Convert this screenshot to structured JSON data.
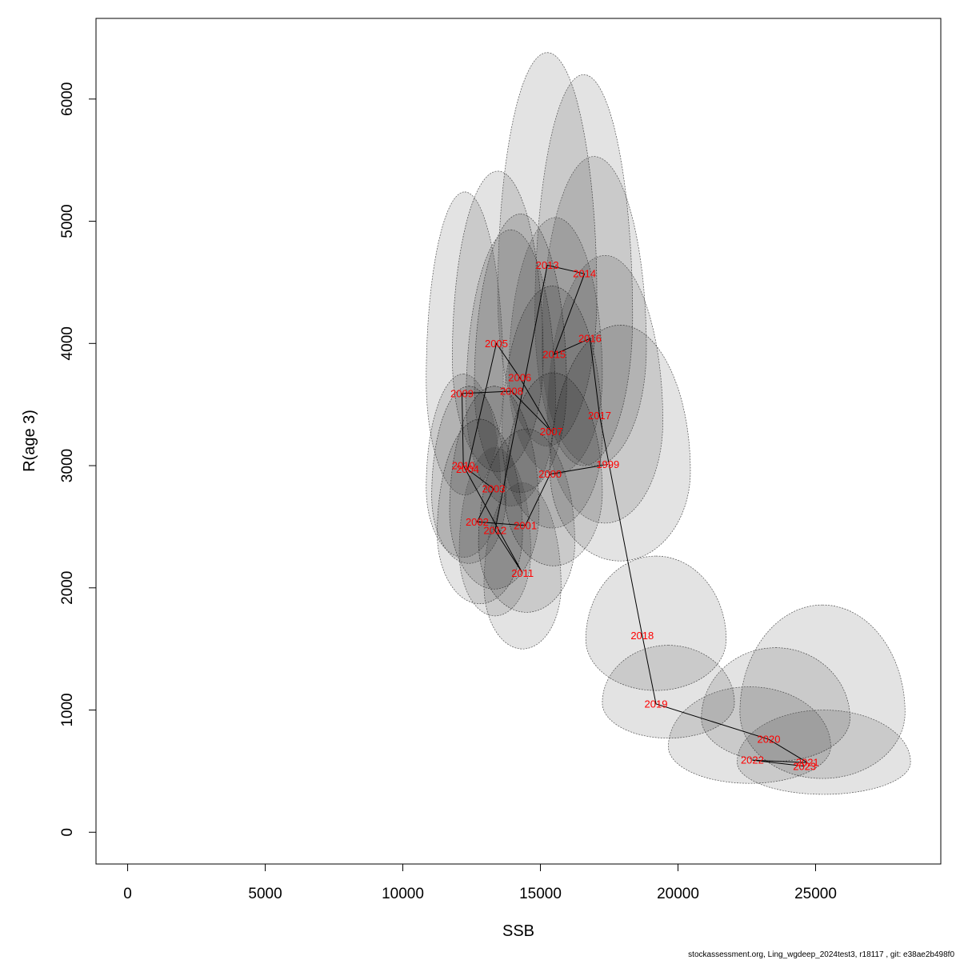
{
  "chart_data": {
    "type": "scatter",
    "title": "",
    "xlabel": "SSB",
    "ylabel": "R(age 3)",
    "xlim": [
      -1150,
      29550
    ],
    "ylim": [
      -260,
      6660
    ],
    "xticks": [
      0,
      5000,
      10000,
      15000,
      20000,
      25000
    ],
    "yticks": [
      0,
      1000,
      2000,
      3000,
      4000,
      5000,
      6000
    ],
    "grid": false,
    "legend": "none",
    "colors": {
      "labels": "#ff0000",
      "path": "#000000",
      "ellipse_fill": "rgba(0,0,0,0.11)",
      "ellipse_stroke": "#555555"
    },
    "points": [
      {
        "year": "1999",
        "x": 17450,
        "y": 3010
      },
      {
        "year": "2000",
        "x": 15350,
        "y": 2930
      },
      {
        "year": "2001",
        "x": 14450,
        "y": 2510
      },
      {
        "year": "2002",
        "x": 12700,
        "y": 2540
      },
      {
        "year": "2003",
        "x": 13300,
        "y": 2810
      },
      {
        "year": "2004",
        "x": 12350,
        "y": 2970
      },
      {
        "year": "2005",
        "x": 13400,
        "y": 4000
      },
      {
        "year": "2006",
        "x": 14250,
        "y": 3720
      },
      {
        "year": "2007",
        "x": 15400,
        "y": 3280
      },
      {
        "year": "2008",
        "x": 13950,
        "y": 3610
      },
      {
        "year": "2009",
        "x": 12150,
        "y": 3590
      },
      {
        "year": "2010",
        "x": 12200,
        "y": 3000
      },
      {
        "year": "2011",
        "x": 14350,
        "y": 2120
      },
      {
        "year": "2012",
        "x": 13350,
        "y": 2470
      },
      {
        "year": "2013",
        "x": 15250,
        "y": 4640
      },
      {
        "year": "2014",
        "x": 16600,
        "y": 4570
      },
      {
        "year": "2015",
        "x": 15500,
        "y": 3910
      },
      {
        "year": "2016",
        "x": 16800,
        "y": 4040
      },
      {
        "year": "2017",
        "x": 17150,
        "y": 3410
      },
      {
        "year": "2018",
        "x": 18700,
        "y": 1610
      },
      {
        "year": "2019",
        "x": 19200,
        "y": 1050
      },
      {
        "year": "2020",
        "x": 23300,
        "y": 760
      },
      {
        "year": "2021",
        "x": 24700,
        "y": 570
      },
      {
        "year": "2022",
        "x": 22700,
        "y": 590
      },
      {
        "year": "2023",
        "x": 24600,
        "y": 540
      }
    ],
    "confidence_regions": [
      {
        "year": "1999",
        "x_range": [
          15350,
          20450
        ],
        "y_range": [
          2220,
          4150
        ]
      },
      {
        "year": "2000",
        "x_range": [
          13700,
          17250
        ],
        "y_range": [
          2180,
          3760
        ]
      },
      {
        "year": "2001",
        "x_range": [
          12750,
          16250
        ],
        "y_range": [
          1800,
          3300
        ]
      },
      {
        "year": "2002",
        "x_range": [
          11250,
          14350
        ],
        "y_range": [
          1870,
          3380
        ]
      },
      {
        "year": "2003",
        "x_range": [
          11700,
          14950
        ],
        "y_range": [
          1990,
          3650
        ]
      },
      {
        "year": "2004",
        "x_range": [
          11050,
          13750
        ],
        "y_range": [
          2200,
          3650
        ]
      },
      {
        "year": "2005",
        "x_range": [
          11800,
          15100
        ],
        "y_range": [
          2950,
          5410
        ]
      },
      {
        "year": "2006",
        "x_range": [
          12600,
          15950
        ],
        "y_range": [
          2780,
          5060
        ]
      },
      {
        "year": "2007",
        "x_range": [
          13600,
          17250
        ],
        "y_range": [
          2490,
          4470
        ]
      },
      {
        "year": "2008",
        "x_range": [
          12300,
          15550
        ],
        "y_range": [
          2670,
          4930
        ]
      },
      {
        "year": "2009",
        "x_range": [
          10850,
          13650
        ],
        "y_range": [
          2760,
          5240
        ]
      },
      {
        "year": "2010",
        "x_range": [
          10850,
          13550
        ],
        "y_range": [
          2250,
          3750
        ]
      },
      {
        "year": "2011",
        "x_range": [
          12950,
          15750
        ],
        "y_range": [
          1500,
          2860
        ]
      },
      {
        "year": "2012",
        "x_range": [
          12050,
          14650
        ],
        "y_range": [
          1770,
          3150
        ]
      },
      {
        "year": "2013",
        "x_range": [
          13450,
          17050
        ],
        "y_range": [
          3160,
          6380
        ]
      },
      {
        "year": "2014",
        "x_range": [
          14800,
          18350
        ],
        "y_range": [
          3000,
          6200
        ]
      },
      {
        "year": "2015",
        "x_range": [
          13850,
          17250
        ],
        "y_range": [
          2930,
          5030
        ]
      },
      {
        "year": "2016",
        "x_range": [
          15050,
          18850
        ],
        "y_range": [
          3000,
          5530
        ]
      },
      {
        "year": "2017",
        "x_range": [
          15250,
          19450
        ],
        "y_range": [
          2530,
          4720
        ]
      },
      {
        "year": "2018",
        "x_range": [
          16650,
          21750
        ],
        "y_range": [
          1160,
          2260
        ]
      },
      {
        "year": "2019",
        "x_range": [
          17250,
          22050
        ],
        "y_range": [
          770,
          1530
        ]
      },
      {
        "year": "2020",
        "x_range": [
          20850,
          26250
        ],
        "y_range": [
          580,
          1510
        ]
      },
      {
        "year": "2021",
        "x_range": [
          22250,
          28250
        ],
        "y_range": [
          440,
          1860
        ]
      },
      {
        "year": "2022",
        "x_range": [
          19650,
          25550
        ],
        "y_range": [
          400,
          1190
        ]
      },
      {
        "year": "2023",
        "x_range": [
          22150,
          28450
        ],
        "y_range": [
          310,
          1000
        ]
      }
    ]
  },
  "footer": "stockassessment.org, Ling_wgdeep_2024test3, r18117 , git: e38ae2b498f0"
}
